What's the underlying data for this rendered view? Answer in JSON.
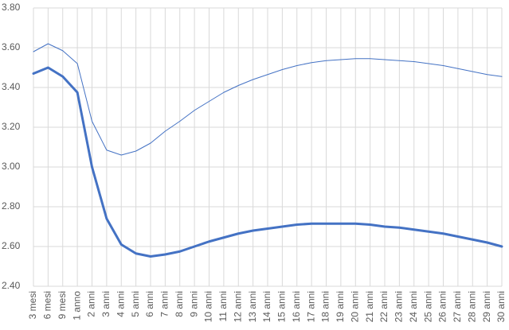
{
  "chart_data": {
    "type": "line",
    "categories": [
      "3 mesi",
      "6 mesi",
      "9 mesi",
      "1 anno",
      "2 anni",
      "3 anni",
      "4 anni",
      "5 anni",
      "6 anni",
      "7 anni",
      "8 anni",
      "9 anni",
      "10 anni",
      "11 anni",
      "12 anni",
      "13 anni",
      "14 anni",
      "15 anni",
      "16 anni",
      "17 anni",
      "18 anni",
      "19 anni",
      "20 anni",
      "21 anni",
      "22 anni",
      "23 anni",
      "24 anni",
      "25 anni",
      "26 anni",
      "27 anni",
      "28 anni",
      "29 anni",
      "30 anni"
    ],
    "series": [
      {
        "color": "#4472c4",
        "width": 1,
        "values": [
          3.58,
          3.62,
          3.585,
          3.52,
          3.23,
          3.085,
          3.06,
          3.08,
          3.12,
          3.18,
          3.23,
          3.285,
          3.33,
          3.375,
          3.41,
          3.44,
          3.465,
          3.49,
          3.51,
          3.525,
          3.535,
          3.54,
          3.545,
          3.545,
          3.54,
          3.535,
          3.53,
          3.52,
          3.51,
          3.495,
          3.48,
          3.465,
          3.455
        ]
      },
      {
        "color": "#4472c4",
        "width": 3,
        "values": [
          3.47,
          3.5,
          3.455,
          3.375,
          3.0,
          2.74,
          2.61,
          2.565,
          2.55,
          2.56,
          2.575,
          2.6,
          2.625,
          2.645,
          2.665,
          2.68,
          2.69,
          2.7,
          2.71,
          2.715,
          2.715,
          2.715,
          2.715,
          2.71,
          2.7,
          2.695,
          2.685,
          2.675,
          2.665,
          2.65,
          2.635,
          2.62,
          2.6
        ]
      }
    ],
    "ylim": [
      2.4,
      3.8
    ],
    "yticks": [
      {
        "value": 2.4,
        "label": "2.40"
      },
      {
        "value": 2.6,
        "label": "2.60"
      },
      {
        "value": 2.8,
        "label": "2.80"
      },
      {
        "value": 3.0,
        "label": "3.00"
      },
      {
        "value": 3.2,
        "label": "3.20"
      },
      {
        "value": 3.4,
        "label": "3.40"
      },
      {
        "value": 3.6,
        "label": "3.60"
      },
      {
        "value": 3.8,
        "label": "3.80"
      }
    ],
    "grid": true
  }
}
